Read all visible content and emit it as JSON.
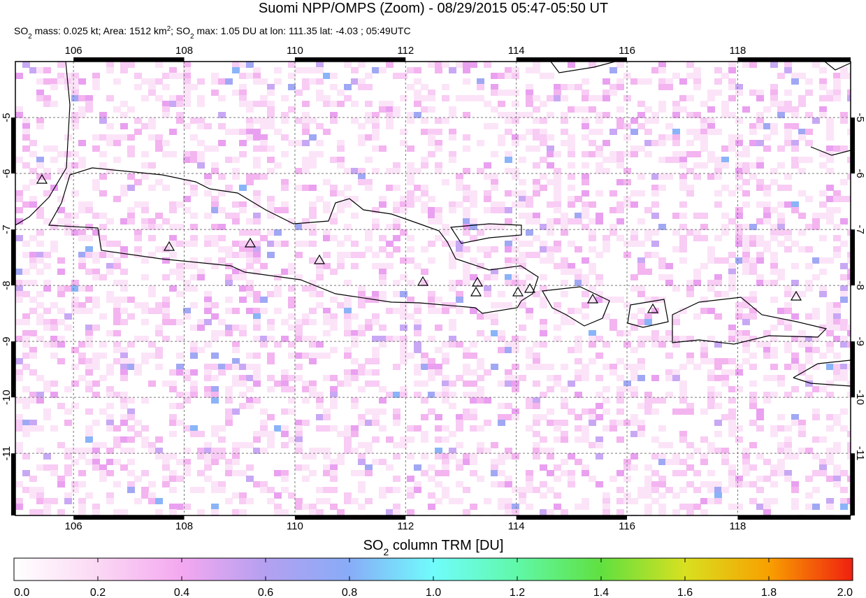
{
  "title": "Suomi NPP/OMPS (Zoom) - 08/29/2015 05:47-05:50 UT",
  "subtitle": [
    {
      "text": "SO"
    },
    {
      "text": "2",
      "style": "sub"
    },
    {
      "text": " mass: 0.025 kt; Area: 1512 km"
    },
    {
      "text": "2",
      "style": "sup"
    },
    {
      "text": "; SO"
    },
    {
      "text": "2",
      "style": "sub"
    },
    {
      "text": " max: 1.05 DU at lon: 111.35 lat: -4.03 ; 05:49UTC"
    }
  ],
  "map": {
    "xlim": [
      104.95,
      120.04
    ],
    "ylim": [
      -4.0,
      -12.11
    ],
    "xticks": [
      106,
      108,
      110,
      112,
      114,
      116,
      118
    ],
    "yticks": [
      -5,
      -6,
      -7,
      -8,
      -9,
      -10,
      -11
    ],
    "grid": true
  },
  "colorbar": {
    "label": [
      {
        "text": "SO"
      },
      {
        "text": "2",
        "style": "sub"
      },
      {
        "text": " column TRM [DU]"
      }
    ],
    "clim": [
      0,
      2
    ],
    "ticks": [
      {
        "value": 0,
        "label": "0.0"
      },
      0.2,
      0.4,
      0.6,
      0.8,
      {
        "value": 1,
        "label": "1.0"
      },
      1.2,
      1.4,
      1.6,
      1.8,
      {
        "value": 2,
        "label": "2.0"
      }
    ]
  }
}
